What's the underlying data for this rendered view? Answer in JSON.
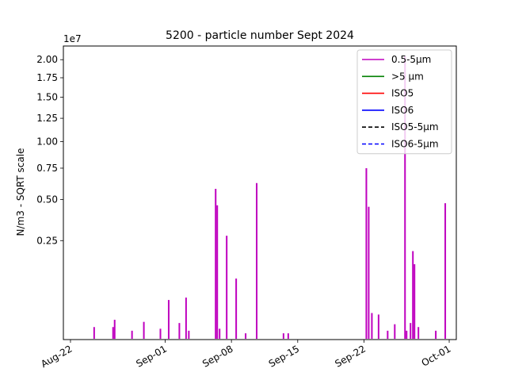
{
  "chart_data": {
    "type": "line",
    "title": "5200 - particle number Sept 2024",
    "ylabel": "N/m3 - SQRT scale",
    "xlabel": "",
    "y_scale": "sqrt",
    "y_offset_label": "1e7",
    "ylim": [
      0,
      2.2
    ],
    "y_ticks": [
      0.25,
      0.5,
      0.75,
      1.0,
      1.25,
      1.5,
      1.75,
      2.0
    ],
    "y_tick_labels": [
      "0.25",
      "0.50",
      "0.75",
      "1.00",
      "1.25",
      "1.50",
      "1.75",
      "2.00"
    ],
    "xlim": [
      "2024-08-21T06:00",
      "2024-10-01T18:00"
    ],
    "x_ticks": [
      "2024-08-22",
      "2024-09-01",
      "2024-09-08",
      "2024-09-15",
      "2024-09-22",
      "2024-10-01"
    ],
    "x_tick_labels": [
      "Aug-22",
      "Sep-01",
      "Sep-08",
      "Sep-15",
      "Sep-22",
      "Oct-01"
    ],
    "grid": false,
    "legend_position": "top-right",
    "series": [
      {
        "name": "0.5-5µm",
        "color": "#bf00bf",
        "style": "solid",
        "points": [
          {
            "x": "2024-08-24T12:00",
            "spike": 0.004
          },
          {
            "x": "2024-08-26T12:00",
            "spike": 0.004
          },
          {
            "x": "2024-08-26T16:00",
            "spike": 0.01
          },
          {
            "x": "2024-08-28T12:00",
            "spike": 0.002
          },
          {
            "x": "2024-08-29T18:00",
            "spike": 0.008
          },
          {
            "x": "2024-08-31T12:00",
            "spike": 0.003
          },
          {
            "x": "2024-09-01T09:00",
            "spike": 0.04
          },
          {
            "x": "2024-09-02T12:00",
            "spike": 0.007
          },
          {
            "x": "2024-09-03T05:00",
            "spike": 0.045
          },
          {
            "x": "2024-09-03T12:00",
            "spike": 0.002
          },
          {
            "x": "2024-09-06T08:00",
            "spike": 0.58
          },
          {
            "x": "2024-09-06T12:00",
            "spike": 0.46
          },
          {
            "x": "2024-09-06T18:00",
            "spike": 0.003
          },
          {
            "x": "2024-09-07T12:00",
            "spike": 0.275
          },
          {
            "x": "2024-09-08T12:00",
            "spike": 0.095
          },
          {
            "x": "2024-09-09T12:00",
            "spike": 0.001
          },
          {
            "x": "2024-09-10T16:00",
            "spike": 0.625
          },
          {
            "x": "2024-09-13T12:00",
            "spike": 0.001
          },
          {
            "x": "2024-09-14T00:00",
            "spike": 0.001
          },
          {
            "x": "2024-09-22T06:00",
            "spike": 0.75
          },
          {
            "x": "2024-09-22T12:00",
            "spike": 0.45
          },
          {
            "x": "2024-09-22T20:00",
            "spike": 0.018
          },
          {
            "x": "2024-09-23T13:00",
            "spike": 0.016
          },
          {
            "x": "2024-09-24T12:00",
            "spike": 0.002
          },
          {
            "x": "2024-09-25T06:00",
            "spike": 0.006
          },
          {
            "x": "2024-09-26T08:00",
            "spike": 2.05
          },
          {
            "x": "2024-09-26T12:00",
            "spike": 0.002
          },
          {
            "x": "2024-09-26T22:00",
            "spike": 0.007
          },
          {
            "x": "2024-09-27T04:00",
            "spike": 0.2
          },
          {
            "x": "2024-09-27T08:00",
            "spike": 0.145
          },
          {
            "x": "2024-09-27T18:00",
            "spike": 0.004
          },
          {
            "x": "2024-09-29T14:00",
            "spike": 0.002
          },
          {
            "x": "2024-09-30T14:00",
            "spike": 0.475
          }
        ]
      },
      {
        "name": ">5 µm",
        "color": "#008000",
        "style": "solid",
        "points": []
      },
      {
        "name": "ISO5",
        "color": "#ff0000",
        "style": "solid",
        "points": []
      },
      {
        "name": "ISO6",
        "color": "#0000ff",
        "style": "solid",
        "points": []
      },
      {
        "name": "ISO5-5µm",
        "color": "#000000",
        "style": "dashed",
        "points": []
      },
      {
        "name": "ISO6-5µm",
        "color": "#0000ff",
        "style": "dashed",
        "points": []
      }
    ]
  }
}
